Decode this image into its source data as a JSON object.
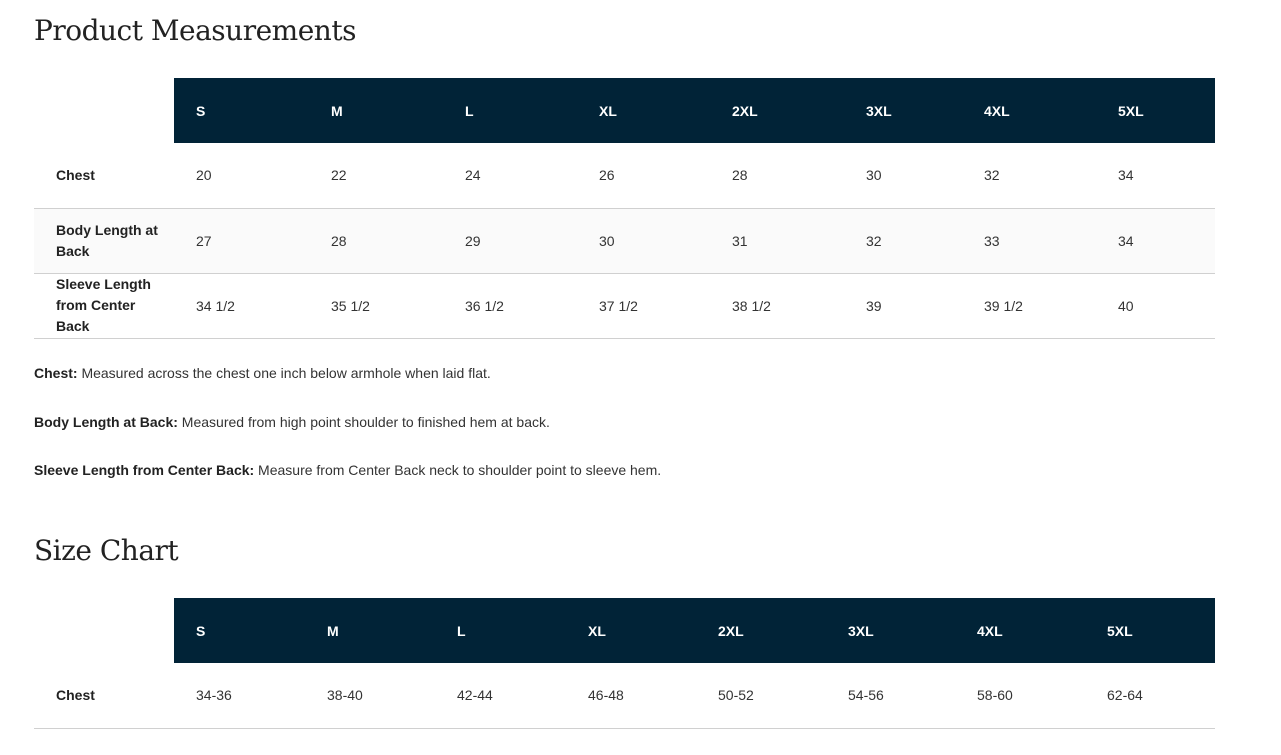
{
  "measurements": {
    "title": "Product Measurements",
    "sizes": [
      "S",
      "M",
      "L",
      "XL",
      "2XL",
      "3XL",
      "4XL",
      "5XL"
    ],
    "rows": [
      {
        "label": "Chest",
        "values": [
          "20",
          "22",
          "24",
          "26",
          "28",
          "30",
          "32",
          "34"
        ]
      },
      {
        "label": "Body Length at Back",
        "values": [
          "27",
          "28",
          "29",
          "30",
          "31",
          "32",
          "33",
          "34"
        ]
      },
      {
        "label": "Sleeve Length from Center Back",
        "values": [
          "34 1/2",
          "35 1/2",
          "36 1/2",
          "37 1/2",
          "38 1/2",
          "39",
          "39 1/2",
          "40"
        ]
      }
    ],
    "notes": [
      {
        "term": "Chest:",
        "text": " Measured across the chest one inch below armhole when laid flat."
      },
      {
        "term": "Body Length at Back:",
        "text": " Measured from high point shoulder to finished hem at back."
      },
      {
        "term": "Sleeve Length from Center Back:",
        "text": " Measure from Center Back neck to shoulder point to sleeve hem."
      }
    ]
  },
  "size_chart": {
    "title": "Size Chart",
    "sizes": [
      "S",
      "M",
      "L",
      "XL",
      "2XL",
      "3XL",
      "4XL",
      "5XL"
    ],
    "rows": [
      {
        "label": "Chest",
        "values": [
          "34-36",
          "38-40",
          "42-44",
          "46-48",
          "50-52",
          "54-56",
          "58-60",
          "62-64"
        ]
      }
    ]
  },
  "colors": {
    "header_bg": "#012337",
    "alt_row_bg": "#fafafa"
  }
}
